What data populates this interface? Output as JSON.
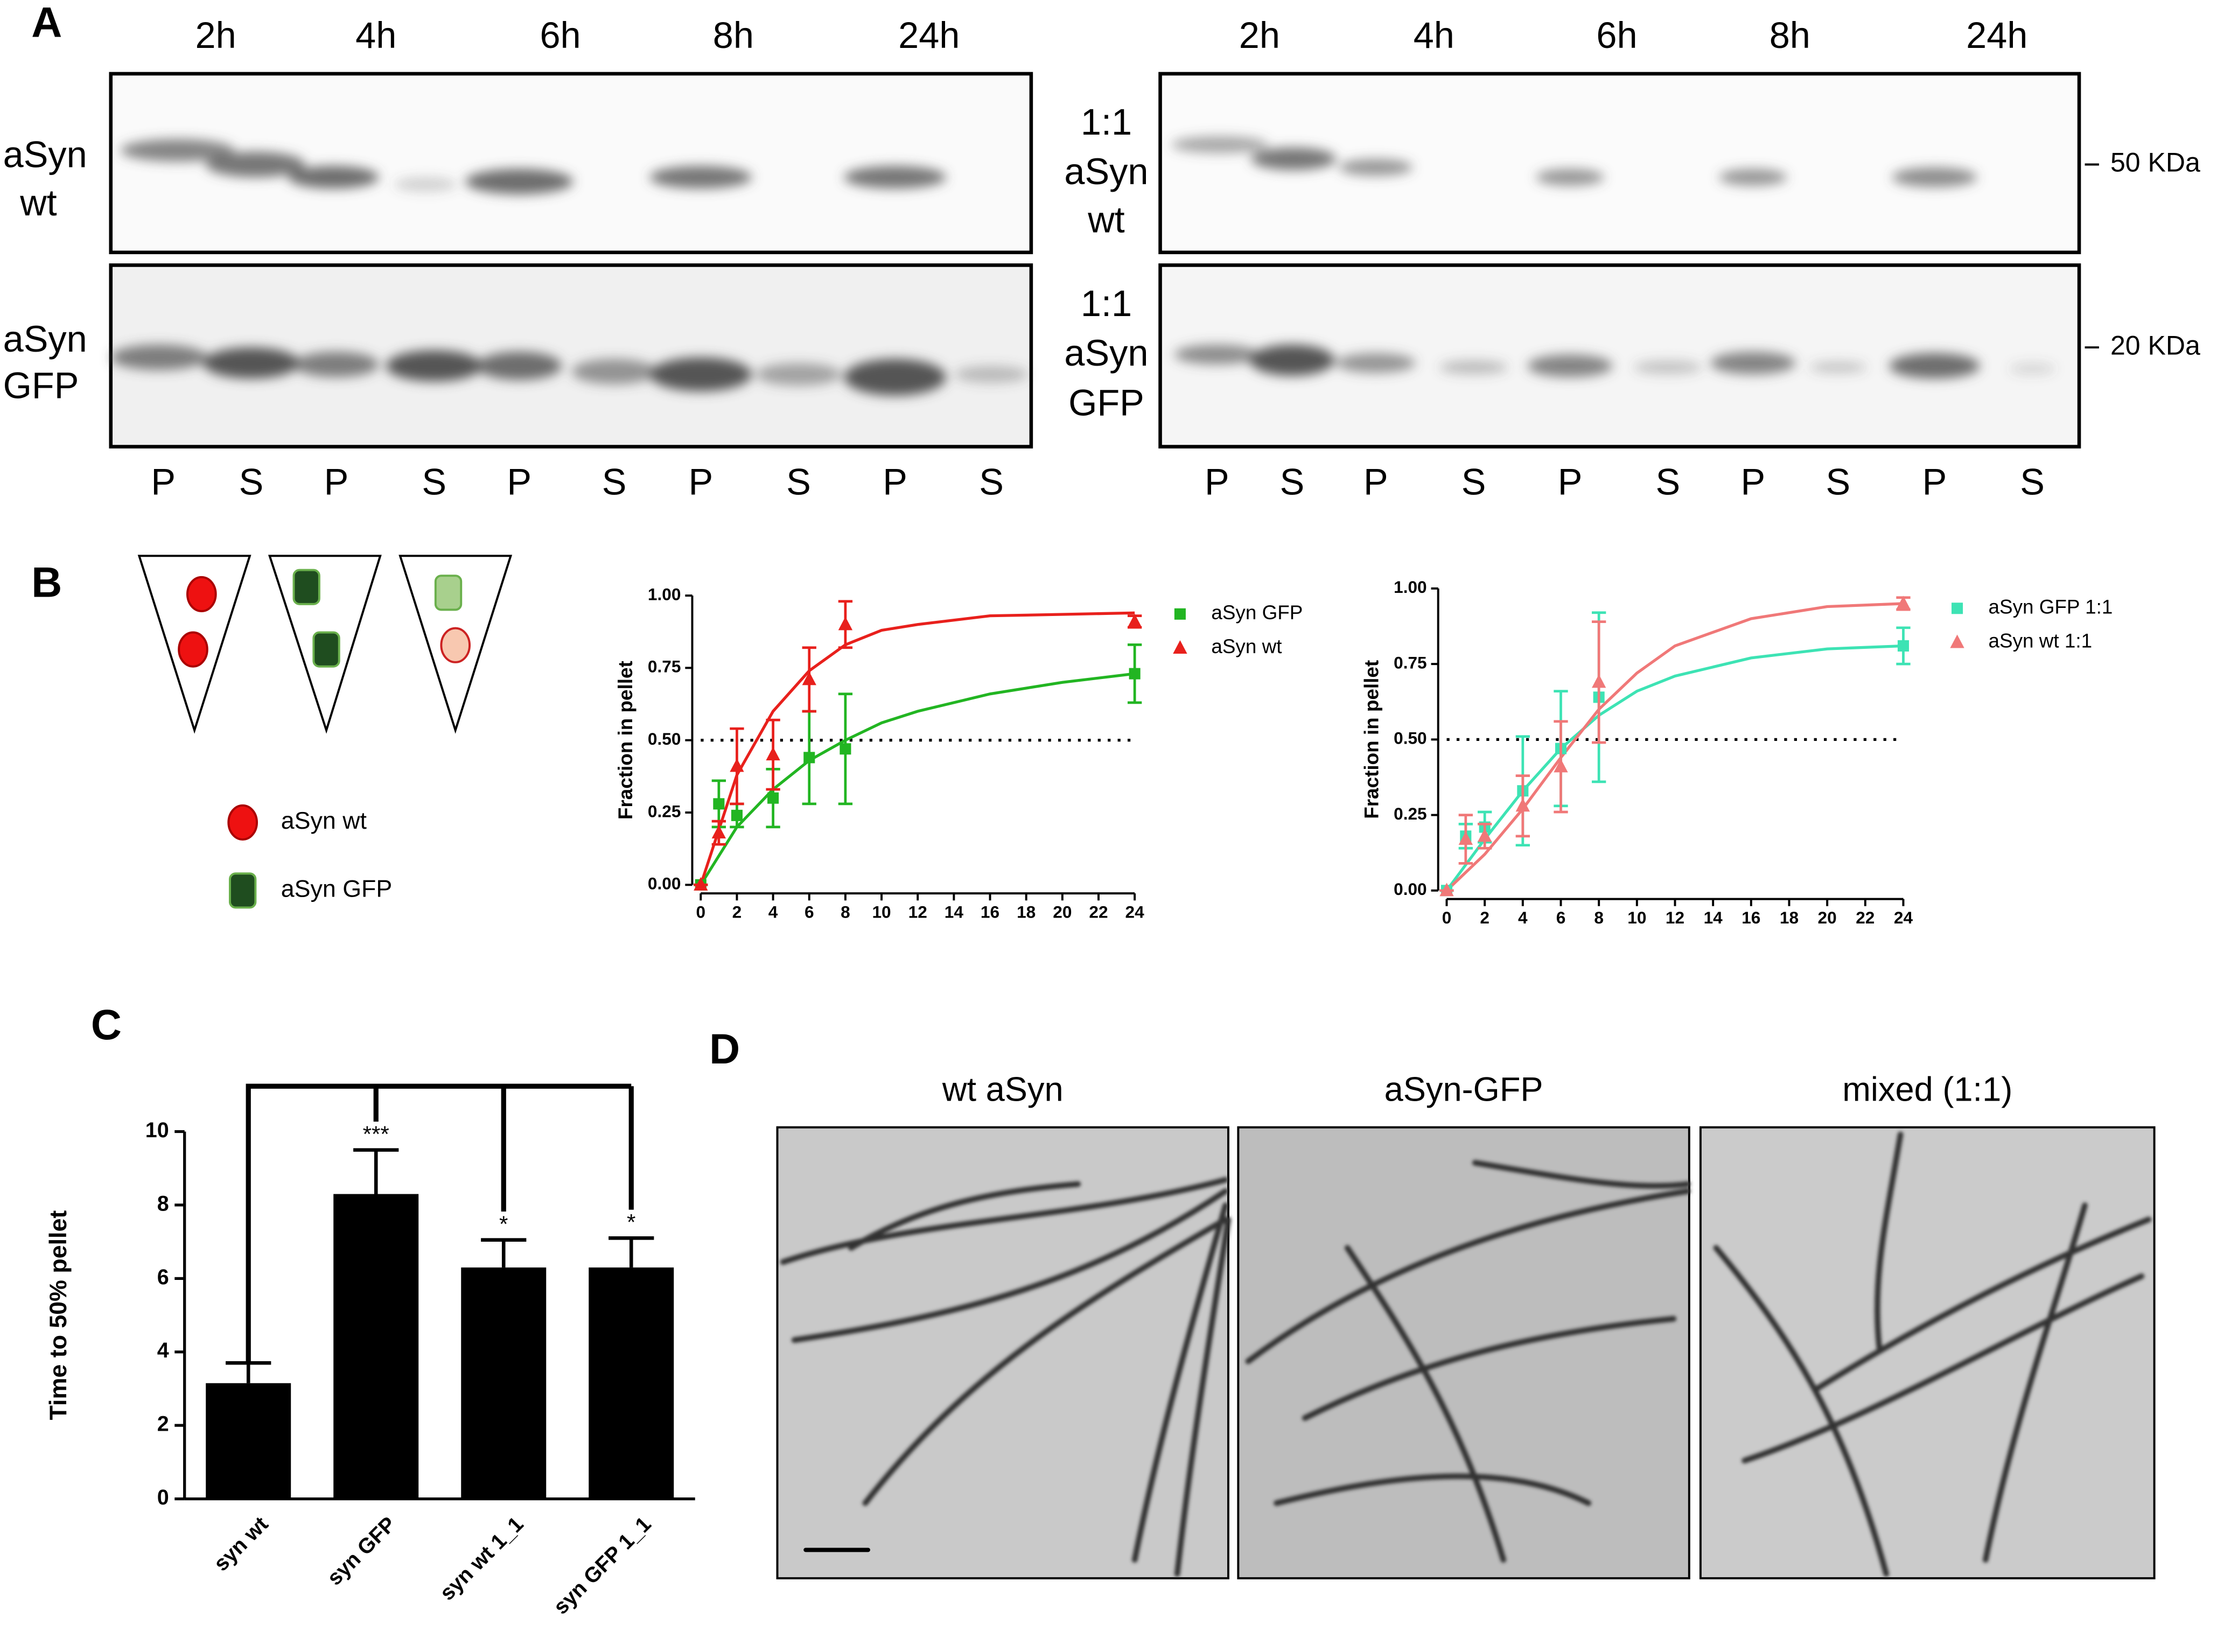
{
  "panel_letters": [
    "A",
    "B",
    "C",
    "D"
  ],
  "gels": {
    "left": {
      "times": [
        "2h",
        "4h",
        "6h",
        "8h",
        "24h"
      ],
      "row1": [
        "aSyn",
        "wt"
      ],
      "row2": [
        "aSyn",
        "GFP"
      ],
      "lanes": [
        "P",
        "S",
        "P",
        "S",
        "P",
        "S",
        "P",
        "S",
        "P",
        "S"
      ]
    },
    "right": {
      "times": [
        "2h",
        "4h",
        "6h",
        "8h",
        "24h"
      ],
      "row1": [
        "1:1",
        "aSyn",
        "wt"
      ],
      "row2": [
        "1:1",
        "aSyn",
        "GFP"
      ],
      "lanes": [
        "P",
        "S",
        "P",
        "S",
        "P",
        "S",
        "P",
        "S",
        "P",
        "S"
      ],
      "markers": [
        "50 KDa",
        "20 KDa"
      ]
    }
  },
  "schematic_legend": [
    "aSyn wt",
    "aSyn GFP"
  ],
  "em_titles": [
    "wt aSyn",
    "aSyn-GFP",
    "mixed (1:1)"
  ],
  "chart_data": [
    {
      "type": "scatter",
      "y_label": "Fraction in pellet",
      "x": [
        0,
        1,
        2,
        4,
        6,
        8,
        24
      ],
      "xlim": [
        0,
        24
      ],
      "xticks": [
        0,
        2,
        4,
        6,
        8,
        10,
        12,
        14,
        16,
        18,
        20,
        22,
        24
      ],
      "ylim": [
        0,
        1
      ],
      "yticks": [
        {
          "value": 0,
          "label": "0.00"
        },
        {
          "value": 0.25,
          "label": "0.25"
        },
        {
          "value": 0.5,
          "label": "0.50"
        },
        {
          "value": 0.75,
          "label": "0.75"
        },
        {
          "value": 1,
          "label": "1.00"
        }
      ],
      "hline": 0.5,
      "series": [
        {
          "name": "aSyn GFP",
          "color": "#22b522",
          "marker": "square",
          "values": [
            0,
            0.28,
            0.24,
            0.3,
            0.44,
            0.47,
            0.73
          ],
          "errors": [
            0,
            0.08,
            0.04,
            0.1,
            0.16,
            0.19,
            0.1
          ]
        },
        {
          "name": "aSyn wt",
          "color": "#e8201c",
          "marker": "triangle",
          "values": [
            0,
            0.18,
            0.41,
            0.45,
            0.71,
            0.9,
            0.91
          ],
          "errors": [
            0,
            0.04,
            0.13,
            0.12,
            0.11,
            0.08,
            0.02
          ]
        }
      ],
      "fit_curves": [
        {
          "color": "#22b522",
          "x": [
            0,
            2,
            4,
            6,
            8,
            10,
            12,
            16,
            20,
            24
          ],
          "values": [
            0,
            0.2,
            0.33,
            0.43,
            0.5,
            0.56,
            0.6,
            0.66,
            0.7,
            0.73
          ]
        },
        {
          "color": "#e8201c",
          "x": [
            0,
            2,
            4,
            6,
            8,
            10,
            12,
            16,
            20,
            24
          ],
          "values": [
            0,
            0.38,
            0.6,
            0.74,
            0.83,
            0.88,
            0.9,
            0.93,
            0.935,
            0.94
          ]
        }
      ]
    },
    {
      "type": "scatter",
      "y_label": "Fraction in pellet",
      "x": [
        0,
        1,
        2,
        4,
        6,
        8,
        24
      ],
      "xlim": [
        0,
        24
      ],
      "xticks": [
        0,
        2,
        4,
        6,
        8,
        10,
        12,
        14,
        16,
        18,
        20,
        22,
        24
      ],
      "ylim": [
        0,
        1
      ],
      "yticks": [
        {
          "value": 0,
          "label": "0.00"
        },
        {
          "value": 0.25,
          "label": "0.25"
        },
        {
          "value": 0.5,
          "label": "0.50"
        },
        {
          "value": 0.75,
          "label": "0.75"
        },
        {
          "value": 1,
          "label": "1.00"
        }
      ],
      "hline": 0.5,
      "series": [
        {
          "name": "aSyn GFP 1:1",
          "color": "#3de3b4",
          "marker": "square",
          "values": [
            0,
            0.18,
            0.21,
            0.33,
            0.47,
            0.64,
            0.81
          ],
          "errors": [
            0,
            0.04,
            0.05,
            0.18,
            0.19,
            0.28,
            0.06
          ]
        },
        {
          "name": "aSyn wt 1:1",
          "color": "#f07878",
          "marker": "triangle",
          "values": [
            0,
            0.17,
            0.18,
            0.28,
            0.41,
            0.69,
            0.95
          ],
          "errors": [
            0,
            0.08,
            0.04,
            0.1,
            0.15,
            0.2,
            0.02
          ]
        }
      ],
      "fit_curves": [
        {
          "color": "#3de3b4",
          "x": [
            0,
            2,
            4,
            6,
            8,
            10,
            12,
            16,
            20,
            24
          ],
          "values": [
            0,
            0.17,
            0.33,
            0.47,
            0.58,
            0.66,
            0.71,
            0.77,
            0.8,
            0.81
          ]
        },
        {
          "color": "#f07878",
          "x": [
            0,
            2,
            4,
            6,
            8,
            10,
            12,
            16,
            20,
            24
          ],
          "values": [
            0,
            0.12,
            0.27,
            0.44,
            0.6,
            0.72,
            0.81,
            0.9,
            0.94,
            0.95
          ]
        }
      ]
    },
    {
      "type": "bar",
      "y_label": "Time to 50% pellet",
      "categories": [
        "syn wt",
        "syn GFP",
        "syn wt 1_1",
        "syn GFP 1_1"
      ],
      "values": [
        3.15,
        8.3,
        6.3,
        6.3
      ],
      "errors": [
        0.55,
        1.2,
        0.75,
        0.8
      ],
      "annotations": [
        null,
        "***",
        "*",
        "*"
      ],
      "color": "#000000",
      "ylim": [
        0,
        10
      ],
      "yticks": [
        0,
        2,
        4,
        6,
        8,
        10
      ]
    }
  ]
}
